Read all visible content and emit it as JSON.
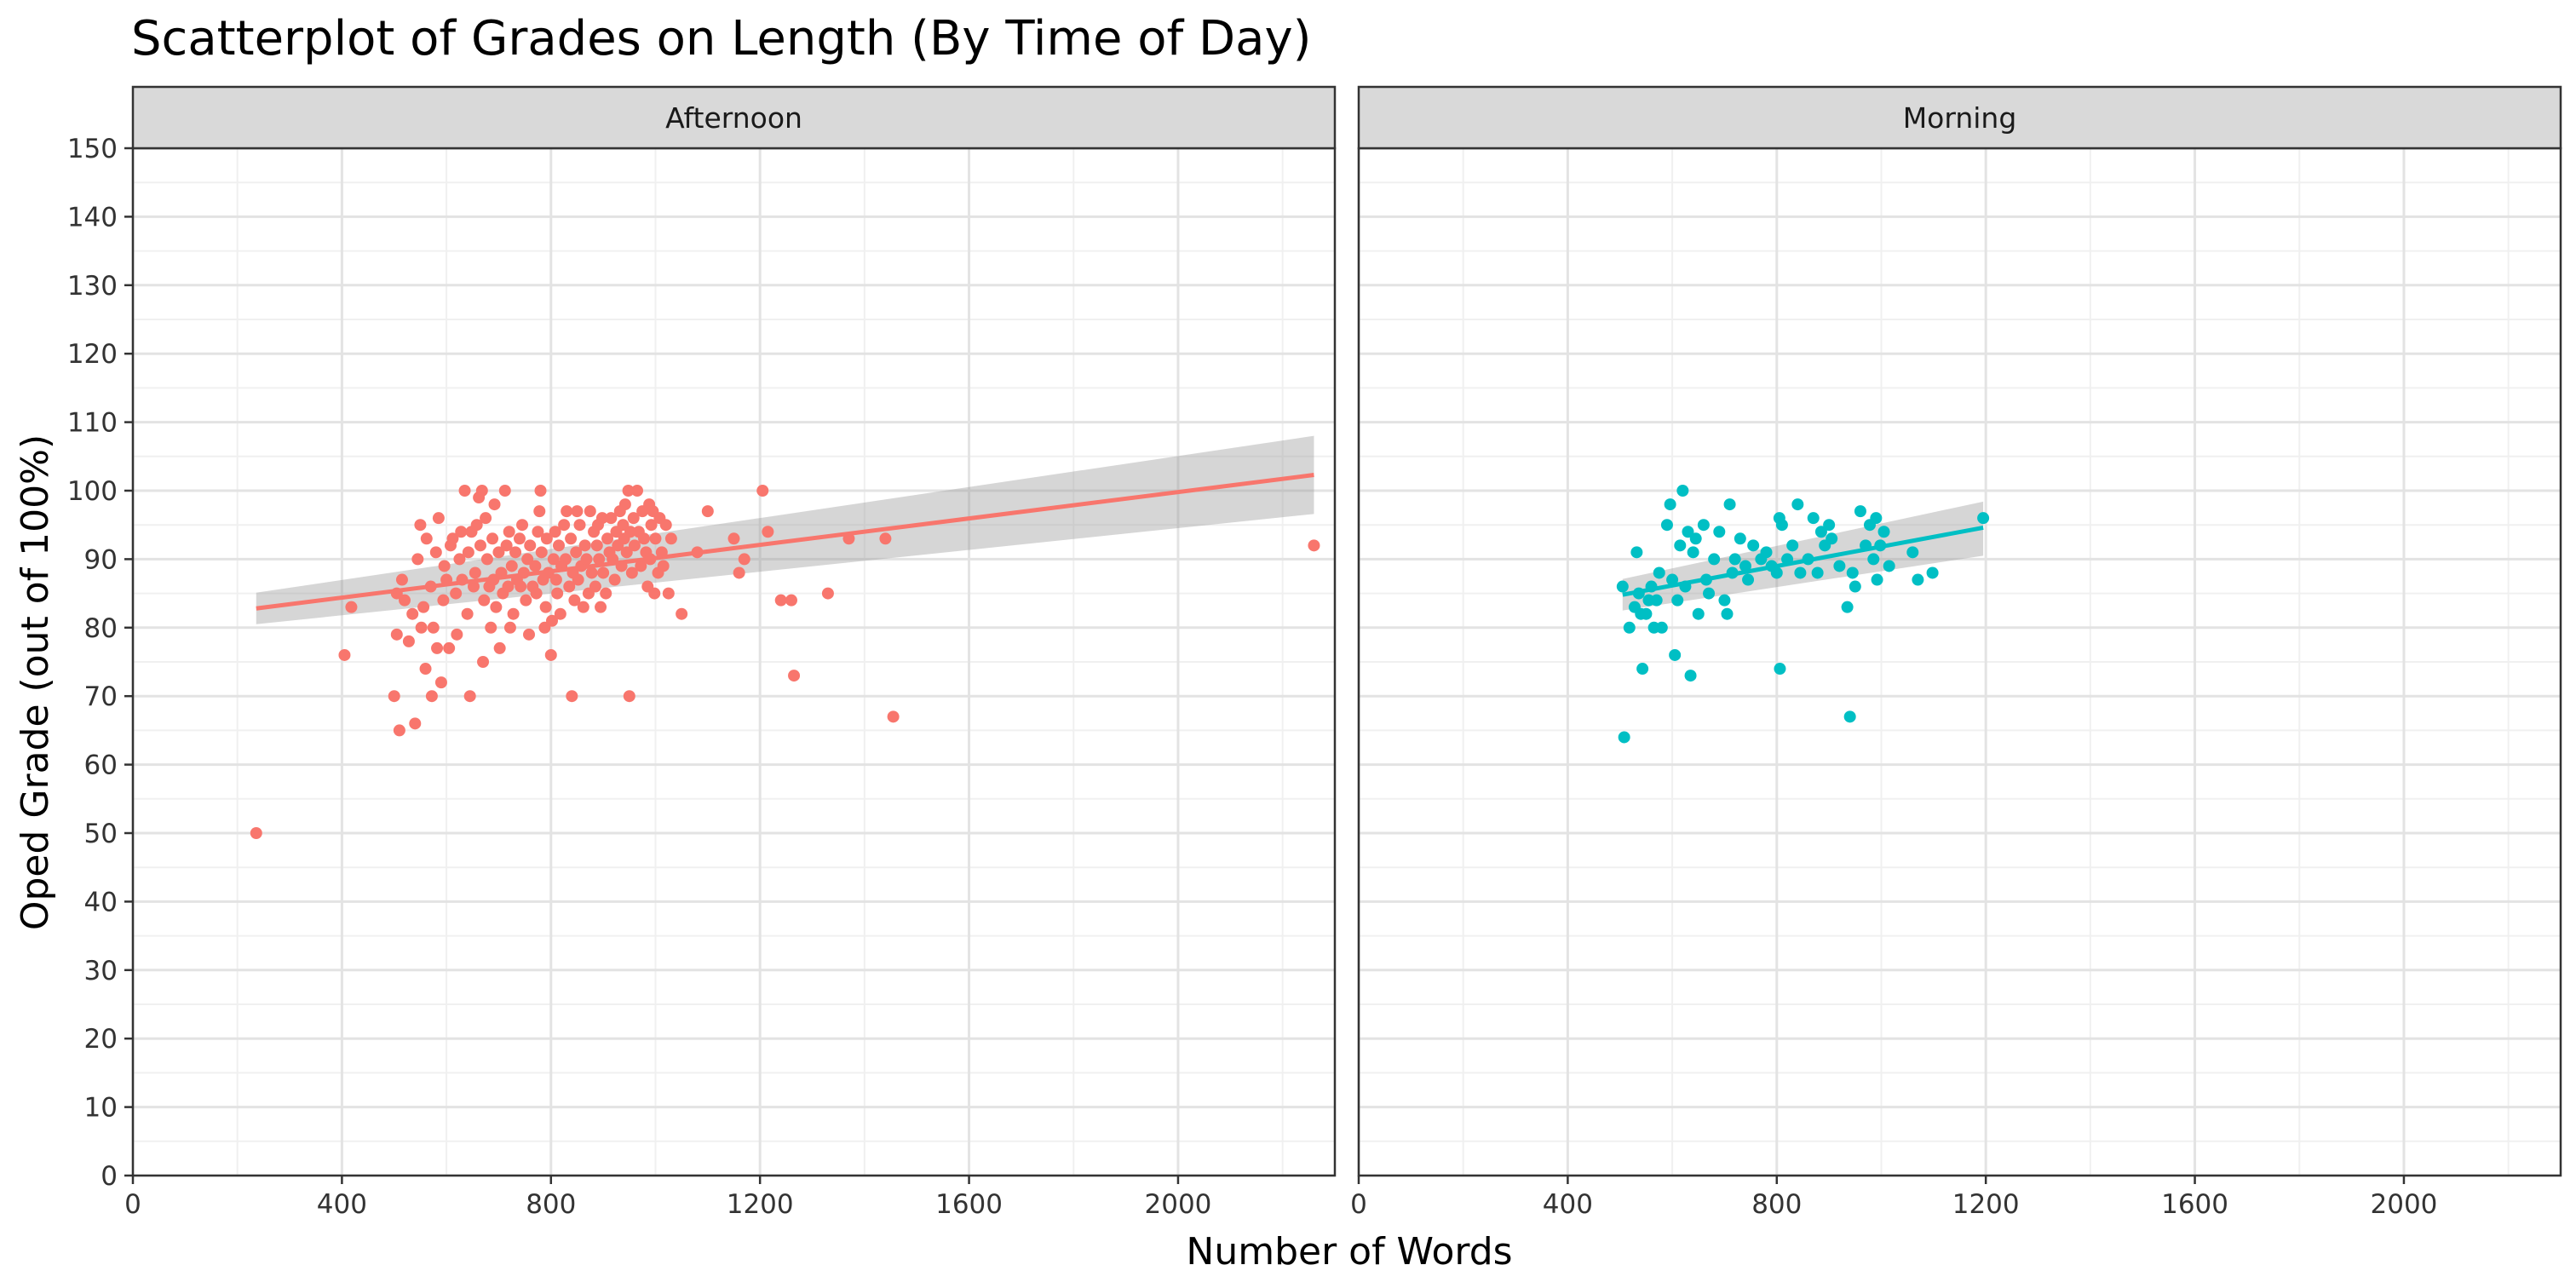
{
  "chart_data": {
    "type": "scatter",
    "title": "Scatterplot of Grades on Length (By Time of Day)",
    "xlabel": "Number of Words",
    "ylabel": "Oped Grade (out of 100%)",
    "xlim": [
      0,
      2300
    ],
    "ylim": [
      0,
      150
    ],
    "x_ticks": [
      0,
      400,
      800,
      1200,
      1600,
      2000
    ],
    "y_ticks": [
      0,
      10,
      20,
      30,
      40,
      50,
      60,
      70,
      80,
      90,
      100,
      110,
      120,
      130,
      140,
      150
    ],
    "grid": true,
    "legend": "none",
    "colors": {
      "afternoon": "#F8766D",
      "morning": "#00BFC4",
      "band": "#999999"
    },
    "panels": [
      {
        "name": "Afternoon",
        "color": "#F8766D",
        "fit": {
          "x": [
            236,
            2260
          ],
          "y": [
            82.8,
            102.3
          ],
          "ci_lower": [
            80.5,
            96.6
          ],
          "ci_upper": [
            85.1,
            108.0
          ]
        },
        "points": [
          [
            236,
            50
          ],
          [
            405,
            76
          ],
          [
            418,
            83
          ],
          [
            500,
            70
          ],
          [
            510,
            65
          ],
          [
            505,
            79
          ],
          [
            505,
            85
          ],
          [
            515,
            87
          ],
          [
            520,
            84
          ],
          [
            528,
            78
          ],
          [
            535,
            82
          ],
          [
            540,
            66
          ],
          [
            545,
            90
          ],
          [
            550,
            95
          ],
          [
            552,
            80
          ],
          [
            556,
            83
          ],
          [
            560,
            74
          ],
          [
            562,
            93
          ],
          [
            570,
            86
          ],
          [
            572,
            70
          ],
          [
            575,
            80
          ],
          [
            580,
            91
          ],
          [
            582,
            77
          ],
          [
            585,
            96
          ],
          [
            590,
            72
          ],
          [
            594,
            84
          ],
          [
            596,
            89
          ],
          [
            600,
            87
          ],
          [
            605,
            77
          ],
          [
            608,
            92
          ],
          [
            612,
            93
          ],
          [
            618,
            85
          ],
          [
            620,
            79
          ],
          [
            625,
            90
          ],
          [
            628,
            94
          ],
          [
            630,
            87
          ],
          [
            635,
            100
          ],
          [
            640,
            82
          ],
          [
            642,
            91
          ],
          [
            645,
            70
          ],
          [
            648,
            94
          ],
          [
            652,
            86
          ],
          [
            655,
            88
          ],
          [
            658,
            95
          ],
          [
            662,
            99
          ],
          [
            665,
            92
          ],
          [
            668,
            100
          ],
          [
            670,
            75
          ],
          [
            672,
            84
          ],
          [
            675,
            96
          ],
          [
            678,
            90
          ],
          [
            682,
            86
          ],
          [
            685,
            80
          ],
          [
            688,
            93
          ],
          [
            690,
            87
          ],
          [
            692,
            98
          ],
          [
            695,
            83
          ],
          [
            700,
            91
          ],
          [
            702,
            77
          ],
          [
            705,
            88
          ],
          [
            708,
            85
          ],
          [
            712,
            100
          ],
          [
            715,
            92
          ],
          [
            718,
            86
          ],
          [
            720,
            94
          ],
          [
            722,
            80
          ],
          [
            725,
            89
          ],
          [
            728,
            82
          ],
          [
            732,
            91
          ],
          [
            735,
            87
          ],
          [
            740,
            93
          ],
          [
            742,
            86
          ],
          [
            745,
            95
          ],
          [
            748,
            88
          ],
          [
            752,
            84
          ],
          [
            755,
            90
          ],
          [
            758,
            79
          ],
          [
            760,
            92
          ],
          [
            765,
            86
          ],
          [
            770,
            89
          ],
          [
            772,
            85
          ],
          [
            775,
            94
          ],
          [
            778,
            97
          ],
          [
            780,
            100
          ],
          [
            782,
            91
          ],
          [
            785,
            87
          ],
          [
            788,
            80
          ],
          [
            790,
            83
          ],
          [
            792,
            93
          ],
          [
            795,
            88
          ],
          [
            800,
            76
          ],
          [
            802,
            81
          ],
          [
            805,
            90
          ],
          [
            808,
            94
          ],
          [
            810,
            87
          ],
          [
            812,
            85
          ],
          [
            815,
            92
          ],
          [
            818,
            82
          ],
          [
            820,
            89
          ],
          [
            825,
            95
          ],
          [
            828,
            90
          ],
          [
            830,
            97
          ],
          [
            835,
            86
          ],
          [
            838,
            93
          ],
          [
            840,
            70
          ],
          [
            842,
            88
          ],
          [
            845,
            84
          ],
          [
            848,
            91
          ],
          [
            850,
            97
          ],
          [
            852,
            87
          ],
          [
            855,
            95
          ],
          [
            858,
            89
          ],
          [
            862,
            83
          ],
          [
            865,
            92
          ],
          [
            868,
            90
          ],
          [
            872,
            85
          ],
          [
            875,
            97
          ],
          [
            878,
            88
          ],
          [
            882,
            94
          ],
          [
            885,
            86
          ],
          [
            888,
            92
          ],
          [
            890,
            95
          ],
          [
            892,
            90
          ],
          [
            895,
            83
          ],
          [
            898,
            96
          ],
          [
            900,
            88
          ],
          [
            905,
            85
          ],
          [
            908,
            93
          ],
          [
            912,
            91
          ],
          [
            915,
            96
          ],
          [
            918,
            90
          ],
          [
            922,
            87
          ],
          [
            925,
            94
          ],
          [
            928,
            92
          ],
          [
            932,
            97
          ],
          [
            935,
            89
          ],
          [
            938,
            95
          ],
          [
            940,
            93
          ],
          [
            942,
            98
          ],
          [
            945,
            91
          ],
          [
            948,
            100
          ],
          [
            950,
            70
          ],
          [
            952,
            94
          ],
          [
            955,
            88
          ],
          [
            958,
            96
          ],
          [
            960,
            92
          ],
          [
            965,
            100
          ],
          [
            968,
            94
          ],
          [
            972,
            89
          ],
          [
            975,
            97
          ],
          [
            978,
            93
          ],
          [
            982,
            91
          ],
          [
            985,
            86
          ],
          [
            988,
            98
          ],
          [
            990,
            90
          ],
          [
            992,
            95
          ],
          [
            995,
            97
          ],
          [
            998,
            85
          ],
          [
            1000,
            93
          ],
          [
            1005,
            88
          ],
          [
            1008,
            96
          ],
          [
            1012,
            91
          ],
          [
            1015,
            89
          ],
          [
            1020,
            95
          ],
          [
            1025,
            85
          ],
          [
            1030,
            93
          ],
          [
            1050,
            82
          ],
          [
            1080,
            91
          ],
          [
            1100,
            97
          ],
          [
            1150,
            93
          ],
          [
            1160,
            88
          ],
          [
            1170,
            90
          ],
          [
            1205,
            100
          ],
          [
            1215,
            94
          ],
          [
            1240,
            84
          ],
          [
            1260,
            84
          ],
          [
            1265,
            73
          ],
          [
            1330,
            85
          ],
          [
            1370,
            93
          ],
          [
            1440,
            93
          ],
          [
            1455,
            67
          ],
          [
            2260,
            92
          ]
        ]
      },
      {
        "name": "Morning",
        "color": "#00BFC4",
        "fit": {
          "x": [
            505,
            1195
          ],
          "y": [
            84.8,
            94.6
          ],
          "ci_lower": [
            82.5,
            90.5
          ],
          "ci_upper": [
            87.1,
            98.4
          ]
        },
        "points": [
          [
            505,
            86
          ],
          [
            508,
            64
          ],
          [
            518,
            80
          ],
          [
            528,
            83
          ],
          [
            532,
            91
          ],
          [
            536,
            85
          ],
          [
            540,
            82
          ],
          [
            543,
            74
          ],
          [
            550,
            82
          ],
          [
            555,
            84
          ],
          [
            560,
            86
          ],
          [
            565,
            80
          ],
          [
            570,
            84
          ],
          [
            575,
            88
          ],
          [
            580,
            80
          ],
          [
            590,
            95
          ],
          [
            596,
            98
          ],
          [
            600,
            87
          ],
          [
            605,
            76
          ],
          [
            610,
            84
          ],
          [
            615,
            92
          ],
          [
            620,
            100
          ],
          [
            625,
            86
          ],
          [
            630,
            94
          ],
          [
            635,
            73
          ],
          [
            640,
            91
          ],
          [
            645,
            93
          ],
          [
            650,
            82
          ],
          [
            660,
            95
          ],
          [
            665,
            87
          ],
          [
            670,
            85
          ],
          [
            680,
            90
          ],
          [
            690,
            94
          ],
          [
            700,
            84
          ],
          [
            705,
            82
          ],
          [
            710,
            98
          ],
          [
            715,
            88
          ],
          [
            720,
            90
          ],
          [
            730,
            93
          ],
          [
            740,
            89
          ],
          [
            745,
            87
          ],
          [
            755,
            92
          ],
          [
            770,
            90
          ],
          [
            780,
            91
          ],
          [
            790,
            89
          ],
          [
            800,
            88
          ],
          [
            805,
            96
          ],
          [
            806,
            74
          ],
          [
            810,
            95
          ],
          [
            820,
            90
          ],
          [
            830,
            92
          ],
          [
            840,
            98
          ],
          [
            845,
            88
          ],
          [
            860,
            90
          ],
          [
            870,
            96
          ],
          [
            878,
            88
          ],
          [
            885,
            94
          ],
          [
            892,
            92
          ],
          [
            900,
            95
          ],
          [
            905,
            93
          ],
          [
            920,
            89
          ],
          [
            935,
            83
          ],
          [
            940,
            67
          ],
          [
            945,
            88
          ],
          [
            950,
            86
          ],
          [
            960,
            97
          ],
          [
            970,
            92
          ],
          [
            978,
            95
          ],
          [
            985,
            90
          ],
          [
            990,
            96
          ],
          [
            992,
            87
          ],
          [
            998,
            92
          ],
          [
            1005,
            94
          ],
          [
            1015,
            89
          ],
          [
            1060,
            91
          ],
          [
            1070,
            87
          ],
          [
            1098,
            88
          ],
          [
            1195,
            96
          ]
        ]
      }
    ]
  }
}
